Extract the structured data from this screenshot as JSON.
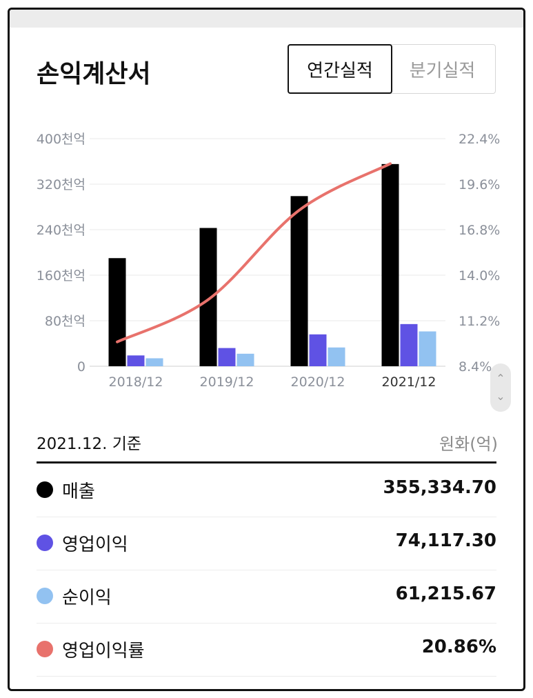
{
  "header": {
    "title": "손익계산서",
    "tabs": [
      {
        "label": "연간실적",
        "active": true
      },
      {
        "label": "분기실적",
        "active": false
      }
    ]
  },
  "chart_data": {
    "type": "bar",
    "categories": [
      "2018/12",
      "2019/12",
      "2020/12",
      "2021/12"
    ],
    "series": [
      {
        "name": "매출",
        "kind": "bar",
        "axis": "left",
        "color": "#000000",
        "values": [
          190,
          243,
          299,
          355.33
        ]
      },
      {
        "name": "영업이익",
        "kind": "bar",
        "axis": "left",
        "color": "#5f52e4",
        "values": [
          19,
          32,
          56,
          74.12
        ]
      },
      {
        "name": "순이익",
        "kind": "bar",
        "axis": "left",
        "color": "#92c2f1",
        "values": [
          14,
          22,
          33,
          61.22
        ]
      },
      {
        "name": "영업이익률",
        "kind": "line",
        "axis": "right",
        "color": "#e8726c",
        "values": [
          9.9,
          12.5,
          18.0,
          20.86
        ]
      }
    ],
    "left_axis": {
      "ticks": [
        0,
        80,
        160,
        240,
        320,
        400
      ],
      "tick_labels": [
        "0",
        "80천억",
        "160천억",
        "240천억",
        "320천억",
        "400천억"
      ],
      "ylim": [
        0,
        400
      ]
    },
    "right_axis": {
      "ticks": [
        8.4,
        11.2,
        14.0,
        16.8,
        19.6,
        22.4
      ],
      "tick_labels": [
        "8.4%",
        "11.2%",
        "14.0%",
        "16.8%",
        "19.6%",
        "22.4%"
      ],
      "ylim": [
        8.4,
        22.4
      ]
    },
    "grid": true,
    "highlight_category": "2021/12",
    "colors": {
      "grid": "#e9e9e9",
      "tick": "#8a8f99",
      "tick_highlight": "#333333"
    }
  },
  "summary": {
    "basis": "2021.12. 기준",
    "unit": "원화(억)",
    "rows": [
      {
        "label": "매출",
        "value": "355,334.70",
        "color": "#000000"
      },
      {
        "label": "영업이익",
        "value": "74,117.30",
        "color": "#5f52e4"
      },
      {
        "label": "순이익",
        "value": "61,215.67",
        "color": "#92c2f1"
      },
      {
        "label": "영업이익률",
        "value": "20.86%",
        "color": "#e8726c"
      }
    ]
  },
  "scroll": {
    "up_icon": "chevron-up-icon",
    "down_icon": "chevron-down-icon"
  }
}
